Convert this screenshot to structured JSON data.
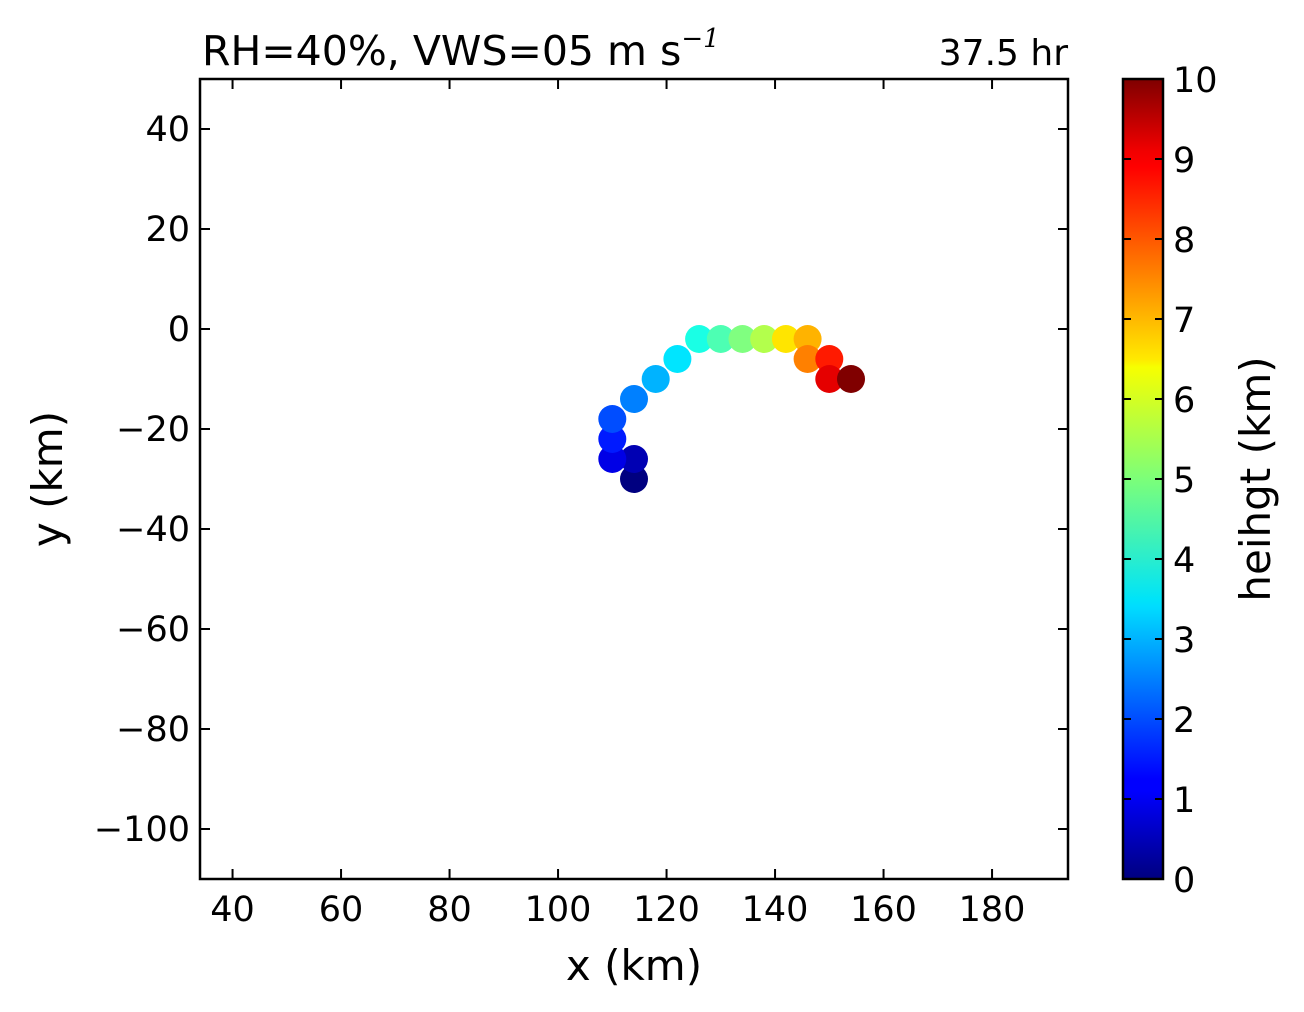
{
  "chart_data": {
    "type": "scatter",
    "title_main": "RH=40%, VWS=05 m s",
    "title_exponent": "−1",
    "time_label": "37.5 hr",
    "time_label_color": "#0000ff",
    "xlabel": "x (km)",
    "ylabel": "y (km)",
    "xlim": [
      34,
      194
    ],
    "ylim": [
      -110,
      50
    ],
    "xticks": [
      40,
      60,
      80,
      100,
      120,
      140,
      160,
      180
    ],
    "yticks": [
      40,
      20,
      0,
      -20,
      -40,
      -60,
      -80,
      -100
    ],
    "xtick_labels": [
      "40",
      "60",
      "80",
      "100",
      "120",
      "140",
      "160",
      "180"
    ],
    "ytick_labels": [
      "40",
      "20",
      "0",
      "−20",
      "−40",
      "−60",
      "−80",
      "−100"
    ],
    "colormap": "jet",
    "colorbar": {
      "label": "heihgt (km)",
      "range": [
        0,
        10
      ],
      "ticks": [
        0,
        1,
        2,
        3,
        4,
        5,
        6,
        7,
        8,
        9,
        10
      ],
      "tick_labels": [
        "0",
        "1",
        "2",
        "3",
        "4",
        "5",
        "6",
        "7",
        "8",
        "9",
        "10"
      ]
    },
    "points": [
      {
        "x": 114,
        "y": -30,
        "height": 0.0
      },
      {
        "x": 114,
        "y": -26,
        "height": 0.5
      },
      {
        "x": 110,
        "y": -26,
        "height": 1.0
      },
      {
        "x": 110,
        "y": -22,
        "height": 1.5
      },
      {
        "x": 110,
        "y": -18,
        "height": 2.0
      },
      {
        "x": 114,
        "y": -14,
        "height": 2.5
      },
      {
        "x": 118,
        "y": -10,
        "height": 3.0
      },
      {
        "x": 122,
        "y": -6,
        "height": 3.5
      },
      {
        "x": 126,
        "y": -2,
        "height": 4.0
      },
      {
        "x": 130,
        "y": -2,
        "height": 4.5
      },
      {
        "x": 134,
        "y": -2,
        "height": 5.0
      },
      {
        "x": 138,
        "y": -2,
        "height": 5.5
      },
      {
        "x": 142,
        "y": -2,
        "height": 6.5
      },
      {
        "x": 146,
        "y": -2,
        "height": 7.0
      },
      {
        "x": 146,
        "y": -6,
        "height": 7.5
      },
      {
        "x": 150,
        "y": -6,
        "height": 8.5
      },
      {
        "x": 150,
        "y": -10,
        "height": 9.0
      },
      {
        "x": 154,
        "y": -10,
        "height": 10.0
      }
    ]
  }
}
